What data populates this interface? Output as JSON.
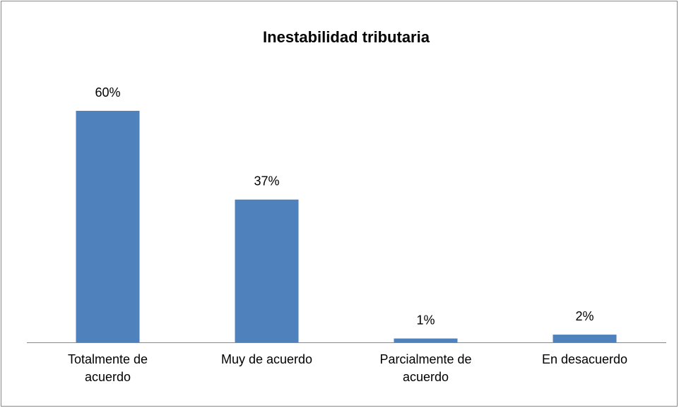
{
  "chart_data": {
    "type": "bar",
    "title": "Inestabilidad tributaria",
    "categories": [
      "Totalmente de acuerdo",
      "Muy de acuerdo",
      "Parcialmente de acuerdo",
      "En desacuerdo"
    ],
    "values": [
      60,
      37,
      1,
      2
    ],
    "value_labels": [
      "60%",
      "37%",
      "1%",
      "2%"
    ],
    "color": "#4f81bd"
  }
}
